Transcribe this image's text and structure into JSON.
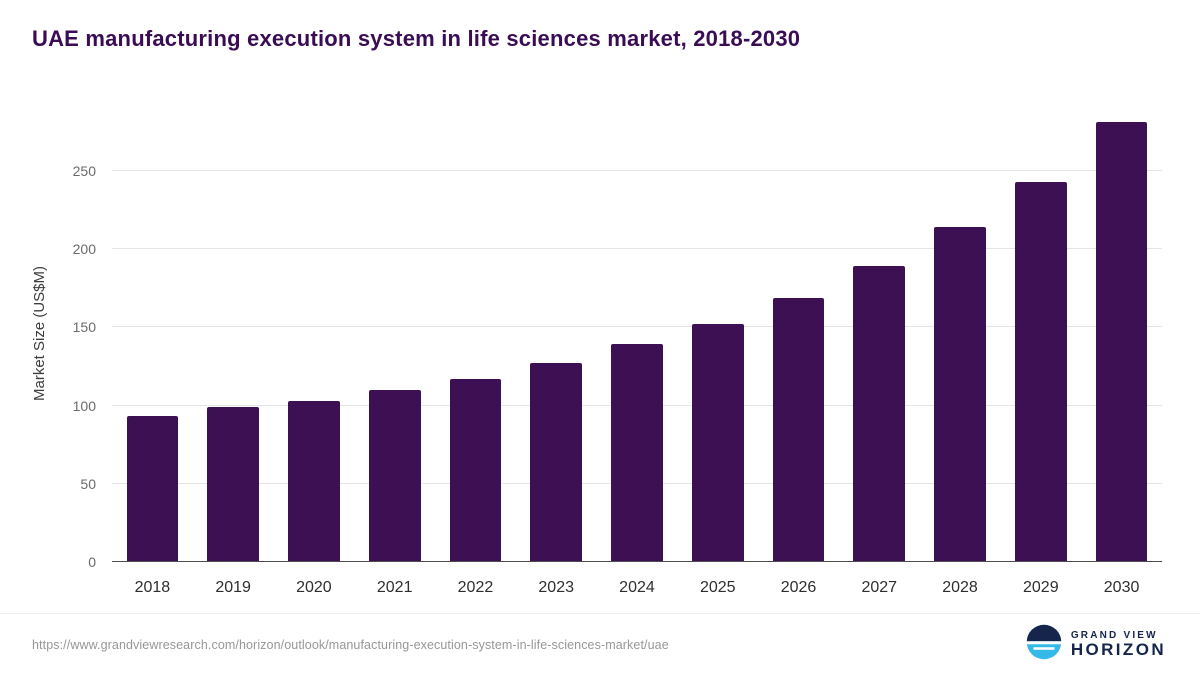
{
  "title": "UAE manufacturing execution system in life sciences market, 2018-2030",
  "chart_data": {
    "type": "bar",
    "categories": [
      "2018",
      "2019",
      "2020",
      "2021",
      "2022",
      "2023",
      "2024",
      "2025",
      "2026",
      "2027",
      "2028",
      "2029",
      "2030"
    ],
    "values": [
      93,
      99,
      103,
      110,
      117,
      127,
      139,
      152,
      169,
      189,
      214,
      243,
      281
    ],
    "title": "UAE manufacturing execution system in life sciences market, 2018-2030",
    "xlabel": "",
    "ylabel": "Market Size (US$M)",
    "ylim": [
      0,
      292
    ],
    "yticks": [
      0,
      50,
      100,
      150,
      200,
      250
    ],
    "bar_color": "#3d1054",
    "grid": "horizontal",
    "legend": "none"
  },
  "footer": {
    "source_url": "https://www.grandviewresearch.com/horizon/outlook/manufacturing-execution-system-in-life-sciences-market/uae",
    "brand": {
      "line1": "GRAND VIEW",
      "line2": "HORIZON",
      "navy": "#16254c",
      "light_blue": "#35b9e9"
    }
  }
}
